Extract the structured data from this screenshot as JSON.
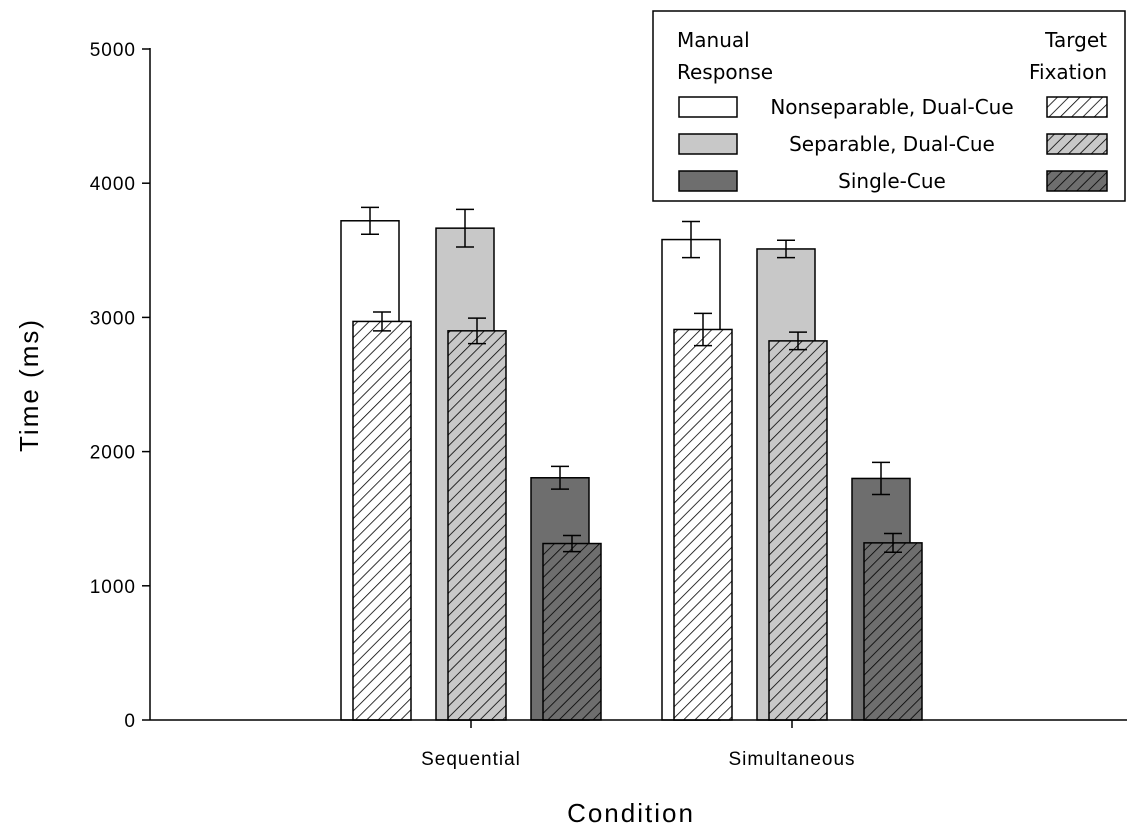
{
  "chart_data": {
    "type": "bar",
    "xlabel": "Condition",
    "ylabel": "Time (ms)",
    "ylim": [
      0,
      5000
    ],
    "yticks": [
      0,
      1000,
      2000,
      3000,
      4000,
      5000
    ],
    "categories": [
      "Sequential",
      "Simultaneous"
    ],
    "measures": [
      "Manual Response",
      "Target Fixation"
    ],
    "series": [
      {
        "name": "Nonseparable, Dual-Cue",
        "color": "#ffffff",
        "manual_response": [
          3720,
          3580
        ],
        "manual_response_error": [
          100,
          135
        ],
        "target_fixation": [
          2970,
          2910
        ],
        "target_fixation_error": [
          70,
          120
        ]
      },
      {
        "name": "Separable, Dual-Cue",
        "color": "#c8c8c8",
        "manual_response": [
          3665,
          3510
        ],
        "manual_response_error": [
          140,
          65
        ],
        "target_fixation": [
          2900,
          2825
        ],
        "target_fixation_error": [
          95,
          65
        ]
      },
      {
        "name": "Single-Cue",
        "color": "#6e6e6e",
        "manual_response": [
          1805,
          1800
        ],
        "manual_response_error": [
          85,
          120
        ],
        "target_fixation": [
          1315,
          1320
        ],
        "target_fixation_error": [
          60,
          70
        ]
      }
    ],
    "legend": {
      "position": "top-right",
      "left_header": "Manual\nResponse",
      "right_header": "Target\nFixation"
    }
  }
}
